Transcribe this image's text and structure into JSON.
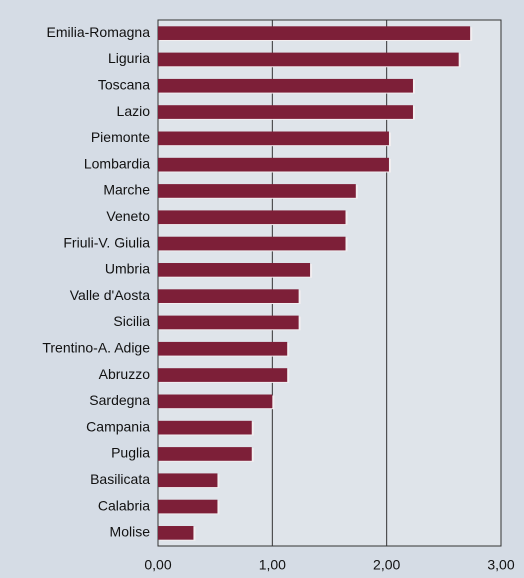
{
  "chart_data": {
    "type": "barh",
    "categories": [
      "Emilia-Romagna",
      "Liguria",
      "Toscana",
      "Lazio",
      "Piemonte",
      "Lombardia",
      "Marche",
      "Veneto",
      "Friuli-V. Giulia",
      "Umbria",
      "Valle d'Aosta",
      "Sicilia",
      "Trentino-A. Adige",
      "Abruzzo",
      "Sardegna",
      "Campania",
      "Puglia",
      "Basilicata",
      "Calabria",
      "Molise"
    ],
    "values": [
      2.73,
      2.63,
      2.23,
      2.23,
      2.02,
      2.02,
      1.73,
      1.64,
      1.64,
      1.33,
      1.23,
      1.23,
      1.13,
      1.13,
      1.0,
      0.82,
      0.82,
      0.52,
      0.52,
      0.31
    ],
    "color": "#7d1f38",
    "xlim": [
      0,
      3
    ],
    "xticks": [
      {
        "value": 0,
        "label": "0,00"
      },
      {
        "value": 1,
        "label": "1,00"
      },
      {
        "value": 2,
        "label": "2,00"
      },
      {
        "value": 3,
        "label": "3,00"
      }
    ],
    "grid": true
  }
}
